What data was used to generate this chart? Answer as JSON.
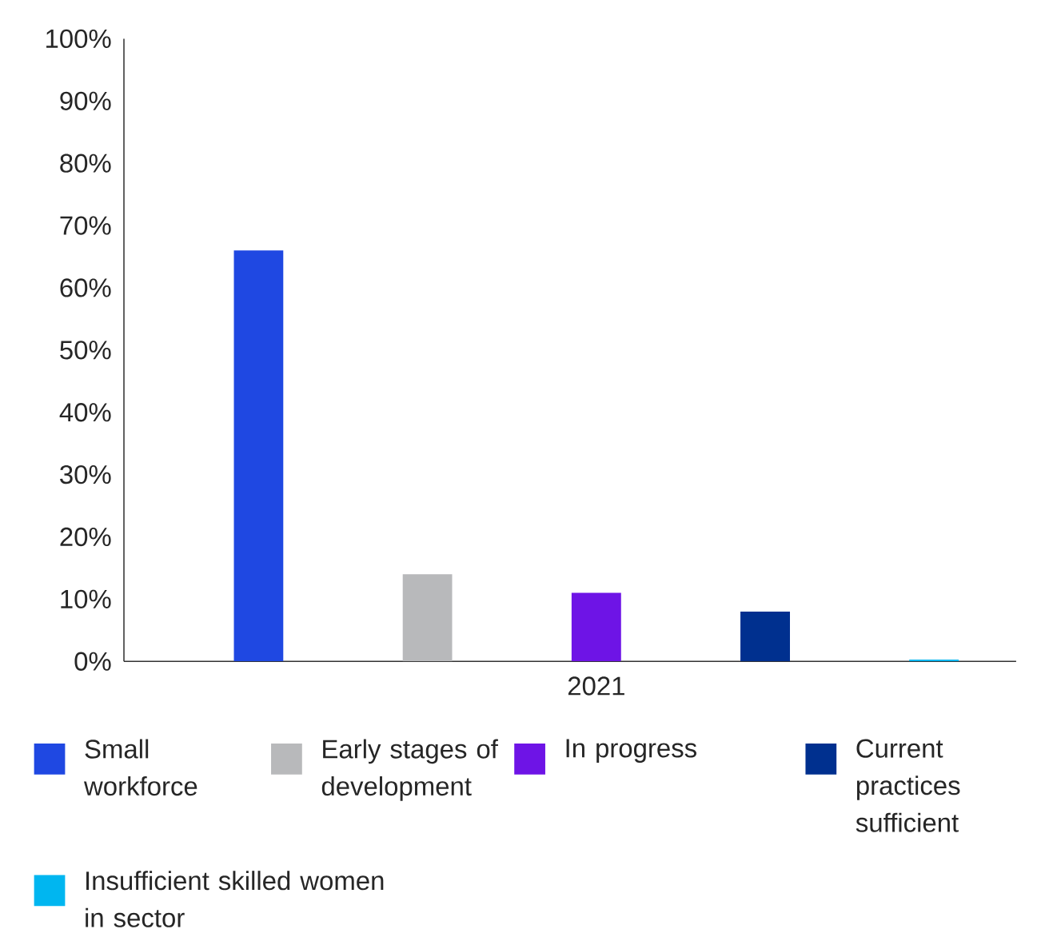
{
  "chart_data": {
    "type": "bar",
    "categories": [
      "2021"
    ],
    "series": [
      {
        "name": "Small workforce",
        "color": "#1f48e2",
        "values": [
          66
        ]
      },
      {
        "name": "Early stages of development",
        "color": "#b8b9bb",
        "values": [
          14
        ]
      },
      {
        "name": "In progress",
        "color": "#6e14e6",
        "values": [
          11
        ]
      },
      {
        "name": "Current practices sufficient",
        "color": "#00308f",
        "values": [
          8
        ]
      },
      {
        "name": "Insufficient skilled women in sector",
        "color": "#00b6f0",
        "values": [
          0.3
        ]
      }
    ],
    "ylim": [
      0,
      100
    ],
    "yticks": [
      {
        "value": 0,
        "label": "0%"
      },
      {
        "value": 10,
        "label": "10%"
      },
      {
        "value": 20,
        "label": "20%"
      },
      {
        "value": 30,
        "label": "30%"
      },
      {
        "value": 40,
        "label": "40%"
      },
      {
        "value": 50,
        "label": "50%"
      },
      {
        "value": 60,
        "label": "60%"
      },
      {
        "value": 70,
        "label": "70%"
      },
      {
        "value": 80,
        "label": "80%"
      },
      {
        "value": 90,
        "label": "90%"
      },
      {
        "value": 100,
        "label": "100%"
      }
    ],
    "grid": false,
    "legend": "bottom"
  }
}
